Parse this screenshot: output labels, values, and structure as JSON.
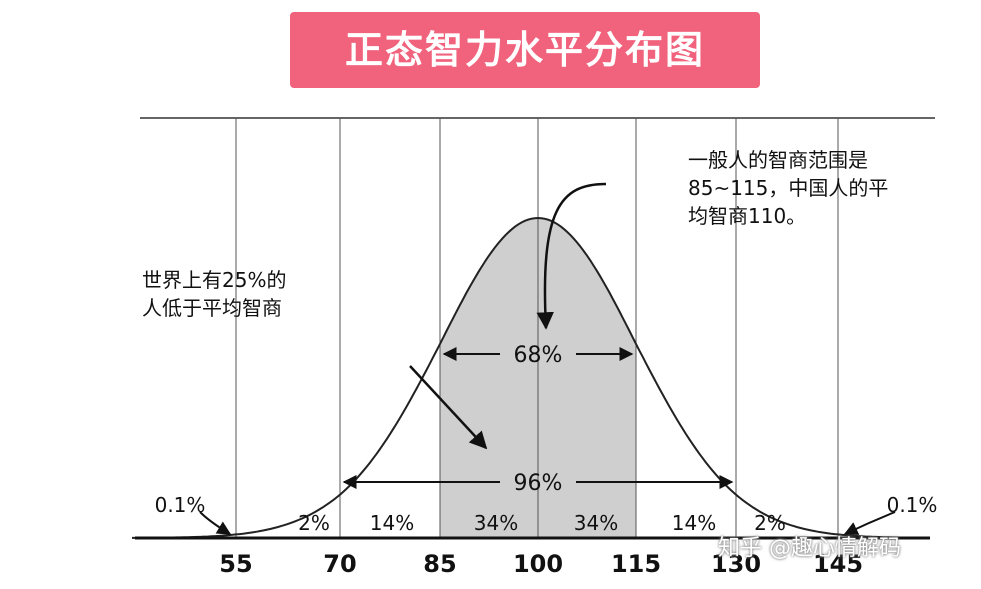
{
  "title": "正态智力水平分布图",
  "notes": {
    "right": [
      "一般人的智商范围是",
      "85~115，中国人的平",
      "均智商110。"
    ],
    "left": [
      "世界上有25%的",
      "人低于平均智商"
    ]
  },
  "watermark": "知乎 @趣心情解码",
  "colors": {
    "title_banner": "#f1627c",
    "shaded_region": "#cfcfcf",
    "curve": "#222222",
    "axis": "#111111"
  },
  "chart_data": {
    "type": "area",
    "title": "正态智力水平分布图",
    "x_ticks": [
      55,
      70,
      85,
      100,
      115,
      130,
      145
    ],
    "mean": 100,
    "sd": 15,
    "xlim": [
      40,
      155
    ],
    "shaded_range": [
      85,
      115
    ],
    "segments": [
      {
        "from": 40,
        "to": 55,
        "label": "0.1%"
      },
      {
        "from": 55,
        "to": 70,
        "label": "2%"
      },
      {
        "from": 70,
        "to": 85,
        "label": "14%"
      },
      {
        "from": 85,
        "to": 100,
        "label": "34%"
      },
      {
        "from": 100,
        "to": 115,
        "label": "34%"
      },
      {
        "from": 115,
        "to": 130,
        "label": "14%"
      },
      {
        "from": 130,
        "to": 145,
        "label": "2%"
      },
      {
        "from": 145,
        "to": 155,
        "label": "0.1%"
      }
    ],
    "ranges": [
      {
        "from": 85,
        "to": 115,
        "label": "68%"
      },
      {
        "from": 70,
        "to": 130,
        "label": "96%"
      }
    ],
    "grid": true
  }
}
